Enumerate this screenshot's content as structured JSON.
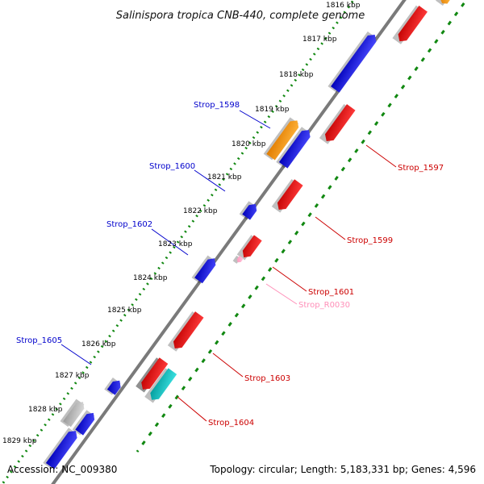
{
  "title": "Salinispora tropica CNB-440, complete genome",
  "footer": {
    "accession": "Accession: NC_009380",
    "summary": "Topology: circular; Length: 5,183,331 bp; Genes: 4,596"
  },
  "colors": {
    "forward_gene": "#0000e6",
    "reverse_gene": "#e60000",
    "rRNA": "#ff9900",
    "tRNA": "#00b2b2",
    "pseudo": "#b4b4b4",
    "misc": "#ff9ec8",
    "backbone": "#7a7a7a",
    "tick": "#118811"
  },
  "kbp_labels": [
    "1816 kbp",
    "1817 kbp",
    "1818 kbp",
    "1819 kbp",
    "1820 kbp",
    "1821 kbp",
    "1822 kbp",
    "1823 kbp",
    "1824 kbp",
    "1825 kbp",
    "1826 kbp",
    "1827 kbp",
    "1828 kbp",
    "1829 kbp"
  ],
  "gene_labels": [
    {
      "name": "Strop_1598",
      "color": "#0000cc"
    },
    {
      "name": "Strop_1600",
      "color": "#0000cc"
    },
    {
      "name": "Strop_1602",
      "color": "#0000cc"
    },
    {
      "name": "Strop_1605",
      "color": "#0000cc"
    },
    {
      "name": "Strop_1597",
      "color": "#cc0000"
    },
    {
      "name": "Strop_1599",
      "color": "#cc0000"
    },
    {
      "name": "Strop_1601",
      "color": "#cc0000"
    },
    {
      "name": "Strop_R0030",
      "color": "#ff8fb8"
    },
    {
      "name": "Strop_1603",
      "color": "#cc0000"
    },
    {
      "name": "Strop_1604",
      "color": "#cc0000"
    }
  ],
  "genes": [
    {
      "strand": "forward",
      "type": "forward_gene"
    },
    {
      "strand": "forward",
      "type": "forward_gene"
    },
    {
      "strand": "forward",
      "type": "rRNA"
    },
    {
      "strand": "forward",
      "type": "forward_gene"
    },
    {
      "strand": "forward",
      "type": "forward_gene"
    },
    {
      "strand": "forward",
      "type": "forward_gene"
    },
    {
      "strand": "forward",
      "type": "forward_gene"
    },
    {
      "strand": "forward",
      "type": "pseudo"
    },
    {
      "strand": "forward",
      "type": "forward_gene"
    },
    {
      "strand": "reverse",
      "type": "reverse_gene"
    },
    {
      "strand": "reverse",
      "type": "reverse_gene"
    },
    {
      "strand": "reverse",
      "type": "reverse_gene"
    },
    {
      "strand": "reverse",
      "type": "reverse_gene"
    },
    {
      "strand": "reverse",
      "type": "reverse_gene"
    },
    {
      "strand": "reverse",
      "type": "misc"
    },
    {
      "strand": "reverse",
      "type": "reverse_gene"
    },
    {
      "strand": "reverse",
      "type": "reverse_gene"
    },
    {
      "strand": "reverse",
      "type": "tRNA"
    },
    {
      "strand": "reverse",
      "type": "rRNA"
    }
  ]
}
